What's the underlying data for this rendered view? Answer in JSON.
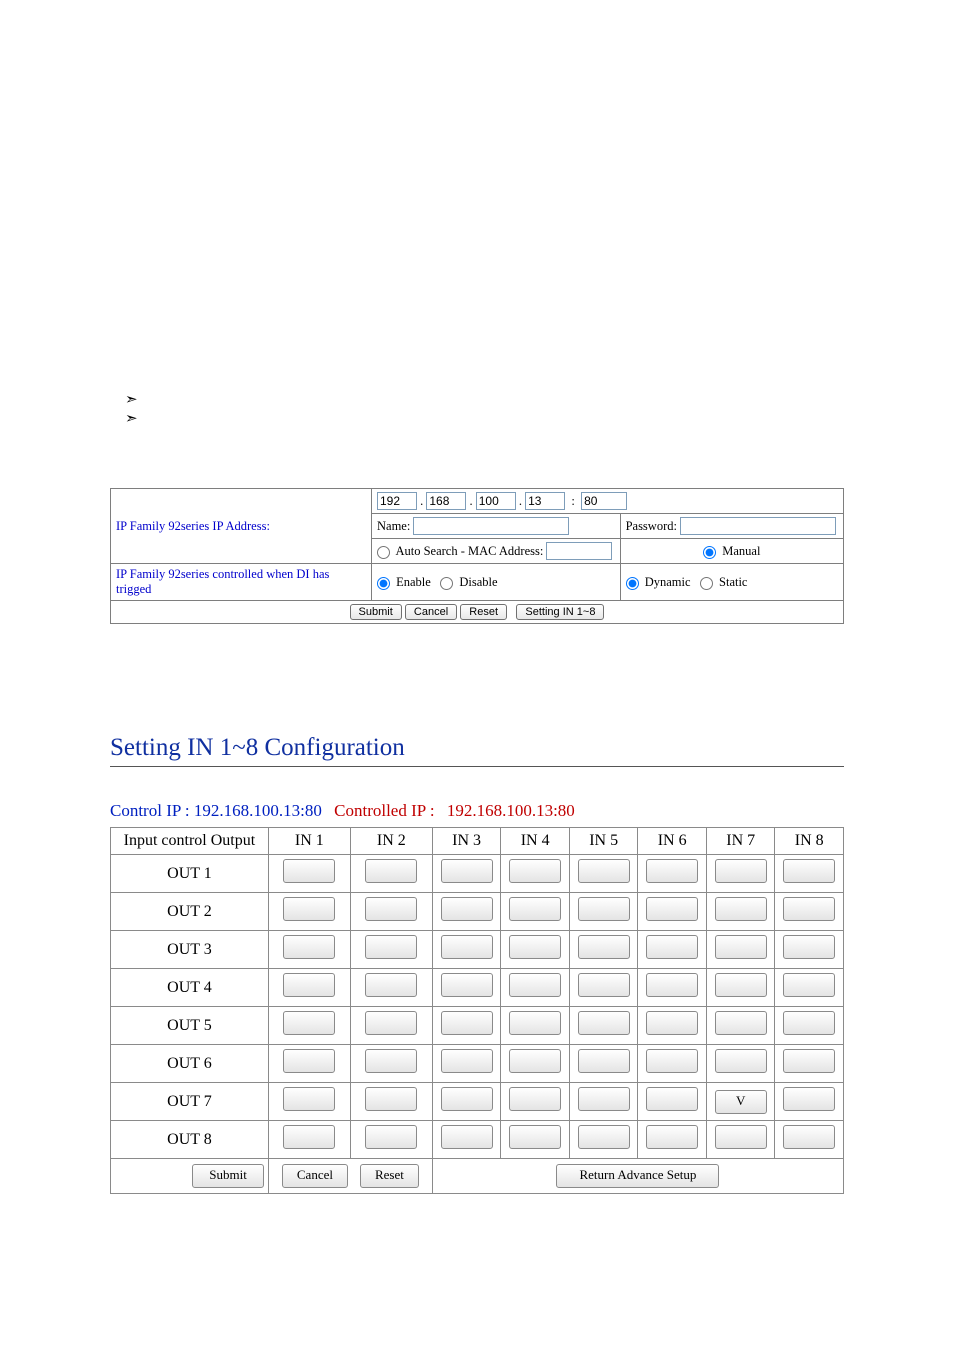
{
  "ipConfig": {
    "rowLabel": "IP Family 92series IP Address:",
    "ip": {
      "a": "192",
      "b": "168",
      "c": "100",
      "d": "13",
      "port": "80"
    },
    "nameLabel": "Name:",
    "nameValue": "",
    "passwordLabel": "Password:",
    "passwordValue": "",
    "autoSearchLabel": "Auto Search - MAC Address:",
    "autoSearchValue": "",
    "manualLabel": "Manual",
    "triggerRowLabel": "IP Family 92series controlled when DI has trigged",
    "enableLabel": "Enable",
    "disableLabel": "Disable",
    "dynamicLabel": "Dynamic",
    "staticLabel": "Static",
    "buttons": {
      "submit": "Submit",
      "cancel": "Cancel",
      "reset": "Reset",
      "setting": "Setting IN 1~8"
    },
    "radios": {
      "searchMode": "manual",
      "enableMode": "enable",
      "ipMode": "dynamic"
    }
  },
  "ioSection": {
    "heading": "Setting IN 1~8 Configuration",
    "controlIpLabel": "Control IP : ",
    "controlIpValue": "192.168.100.13:80",
    "controlledIpLabel": "Controlled IP : ",
    "controlledIpValue": "192.168.100.13:80",
    "cornerHeader": "Input control Output",
    "inHeaders": [
      "IN 1",
      "IN 2",
      "IN 3",
      "IN 4",
      "IN 5",
      "IN 6",
      "IN 7",
      "IN 8"
    ],
    "outLabels": [
      "OUT 1",
      "OUT 2",
      "OUT 3",
      "OUT 4",
      "OUT 5",
      "OUT 6",
      "OUT 7",
      "OUT 8"
    ],
    "cells": {
      "OUT 7": {
        "IN 7": "V"
      }
    },
    "footerButtons": {
      "submit": "Submit",
      "cancel": "Cancel",
      "reset": "Reset",
      "return": "Return Advance Setup"
    }
  },
  "colors": {
    "headingBlue": "#1030a0",
    "linkBlue": "#0000cc",
    "controlBlue": "#0020c0",
    "controlRed": "#c00000",
    "border": "#8a8a8a",
    "inputBorder": "#7e9db9"
  }
}
